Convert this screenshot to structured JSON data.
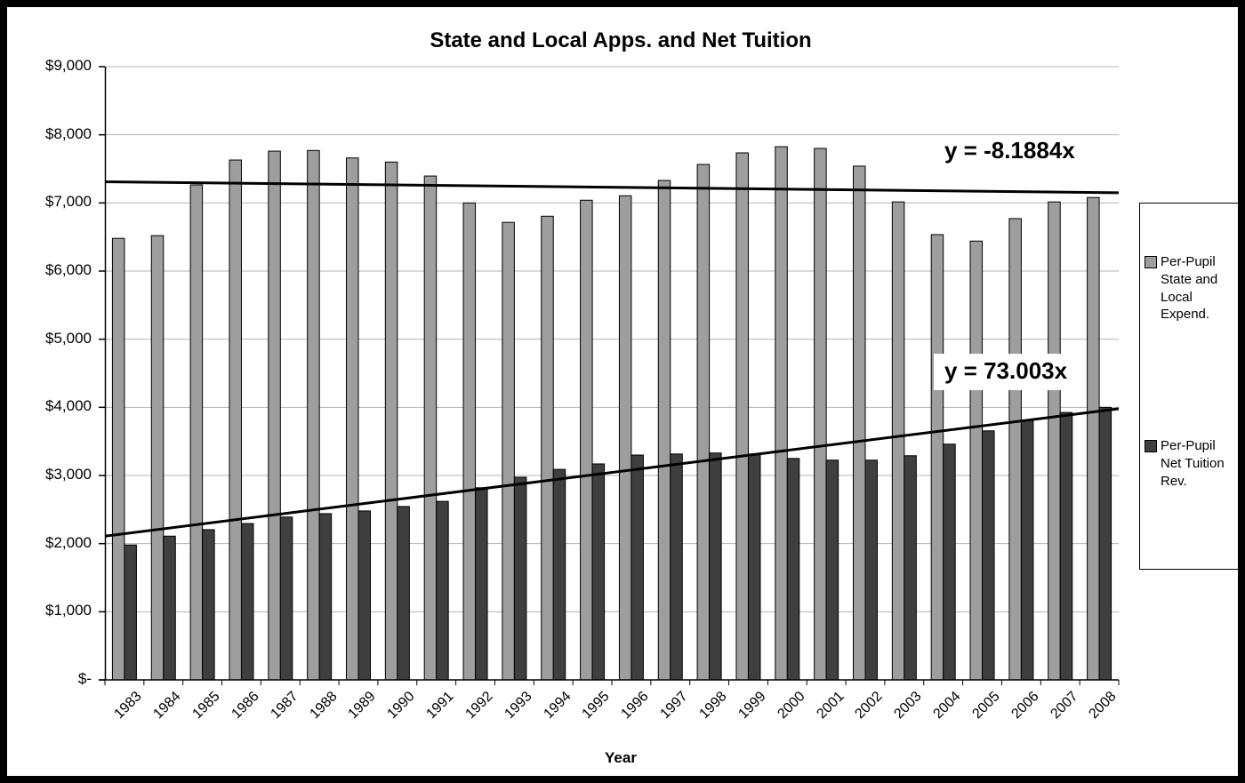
{
  "chart_data": {
    "type": "bar",
    "title": "State and Local Apps. and Net Tuition",
    "xlabel": "Year",
    "ylabel": "",
    "ylim": [
      0,
      9000
    ],
    "ytick_interval": 1000,
    "ytick_labels": [
      "$-",
      "$1,000",
      "$2,000",
      "$3,000",
      "$4,000",
      "$5,000",
      "$6,000",
      "$7,000",
      "$8,000",
      "$9,000"
    ],
    "grid": true,
    "legend_position": "right",
    "categories": [
      "1983",
      "1984",
      "1985",
      "1986",
      "1987",
      "1988",
      "1989",
      "1990",
      "1991",
      "1992",
      "1993",
      "1994",
      "1995",
      "1996",
      "1997",
      "1998",
      "1999",
      "2000",
      "2001",
      "2002",
      "2003",
      "2004",
      "2005",
      "2006",
      "2007",
      "2008"
    ],
    "series": [
      {
        "name": "Per-Pupil State and Local Expend.",
        "color": "#9e9e9e",
        "values": [
          6480,
          6520,
          7265,
          7630,
          7760,
          7770,
          7660,
          7600,
          7395,
          7000,
          6715,
          6805,
          7040,
          7105,
          7330,
          7565,
          7735,
          7825,
          7800,
          7540,
          7015,
          6535,
          6440,
          6770,
          7015,
          7080
        ]
      },
      {
        "name": "Per-Pupil Net Tuition Rev.",
        "color": "#3f3f3f",
        "values": [
          1980,
          2110,
          2205,
          2295,
          2390,
          2440,
          2480,
          2545,
          2620,
          2820,
          2975,
          3090,
          3170,
          3300,
          3315,
          3330,
          3315,
          3250,
          3225,
          3225,
          3290,
          3460,
          3655,
          3810,
          3925,
          4000
        ]
      }
    ],
    "trendlines": [
      {
        "label": "y = -8.1884x",
        "series": "Per-Pupil State and Local Expend.",
        "y_start": 7310,
        "y_end": 7150
      },
      {
        "label": "y = 73.003x",
        "series": "Per-Pupil Net Tuition Rev.",
        "y_start": 2110,
        "y_end": 3980
      }
    ],
    "colors": {
      "gridline": "#b4b4b4",
      "axis": "#000000",
      "trendline": "#000000"
    }
  }
}
